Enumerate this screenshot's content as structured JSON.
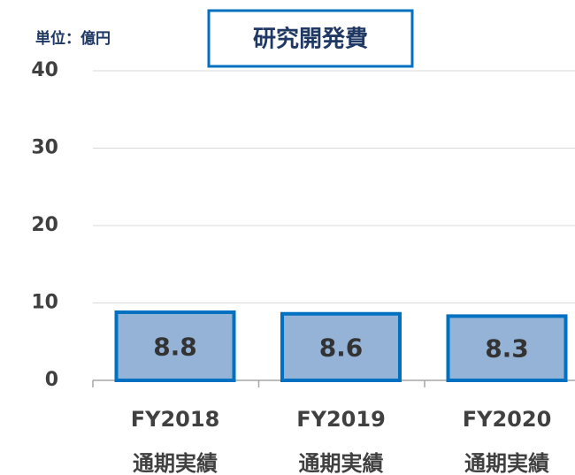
{
  "chart_data": {
    "type": "bar",
    "title": "研究開発費",
    "unit_label": "単位：億円",
    "categories": [
      [
        "FY2018",
        "通期実績"
      ],
      [
        "FY2019",
        "通期実績"
      ],
      [
        "FY2020",
        "通期実績"
      ]
    ],
    "values": [
      8.8,
      8.6,
      8.3
    ],
    "color": "#95b3d7",
    "edge_color": "#0070c0",
    "ylim": [
      0,
      40
    ],
    "yticks": [
      0,
      10,
      20,
      30,
      40
    ],
    "grid": true
  }
}
